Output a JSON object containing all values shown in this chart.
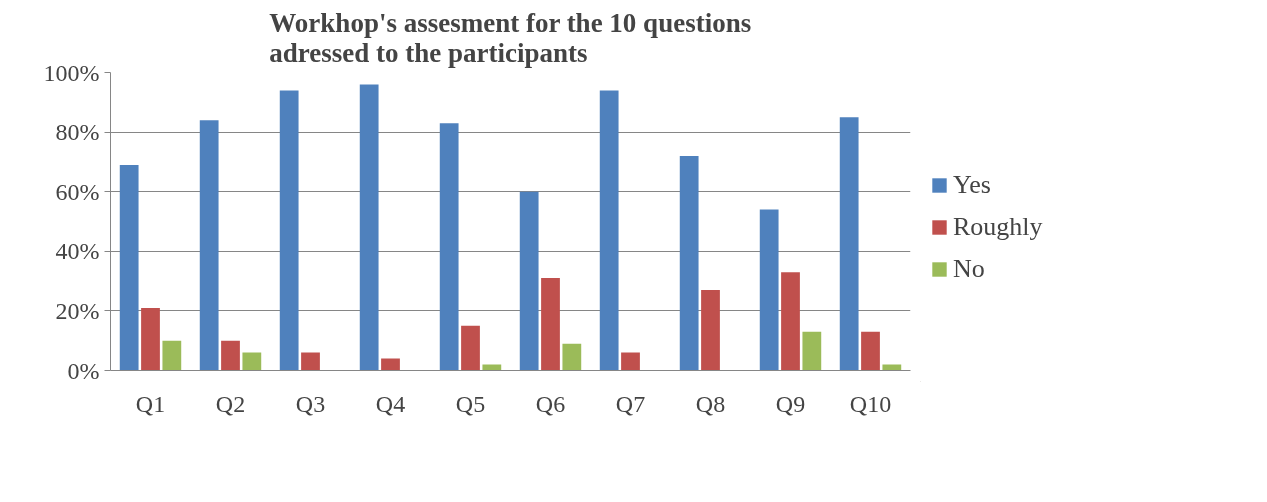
{
  "chart_data": {
    "type": "bar",
    "title": "Workhop's assesment for the 10 questions\nadressed to the participants",
    "categories": [
      "Q1",
      "Q2",
      "Q3",
      "Q4",
      "Q5",
      "Q6",
      "Q7",
      "Q8",
      "Q9",
      "Q10"
    ],
    "series": [
      {
        "name": "Yes",
        "color": "#4f81bd",
        "values": [
          69,
          84,
          94,
          96,
          83,
          60,
          94,
          72,
          54,
          85
        ]
      },
      {
        "name": "Roughly",
        "color": "#c0504d",
        "values": [
          21,
          10,
          6,
          4,
          15,
          31,
          6,
          27,
          33,
          13
        ]
      },
      {
        "name": "No",
        "color": "#9bbb59",
        "values": [
          10,
          6,
          0,
          0,
          2,
          9,
          0,
          0,
          13,
          2
        ]
      }
    ],
    "ylim": [
      0,
      100
    ],
    "yticks": [
      {
        "value": 0,
        "label": "0%"
      },
      {
        "value": 20,
        "label": "20%"
      },
      {
        "value": 40,
        "label": "40%"
      },
      {
        "value": 60,
        "label": "60%"
      },
      {
        "value": 80,
        "label": "80%"
      },
      {
        "value": 100,
        "label": "100%"
      }
    ],
    "grid": "y",
    "legend": "right"
  }
}
